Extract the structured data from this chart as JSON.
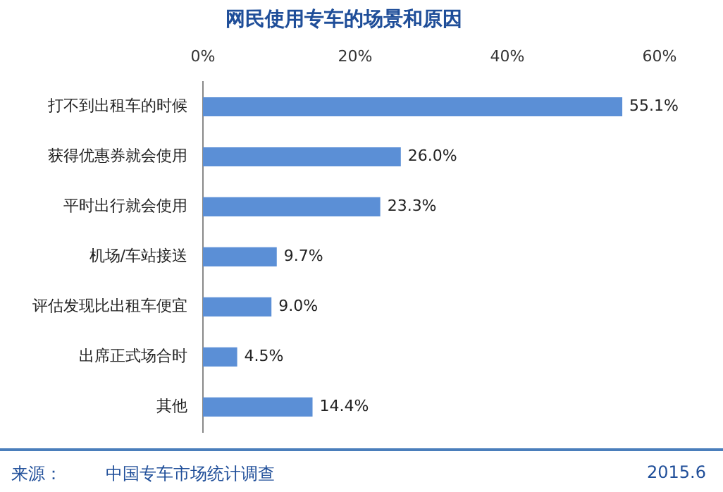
{
  "chart_data": {
    "type": "bar",
    "orientation": "horizontal",
    "title": "网民使用专车的场景和原因",
    "categories": [
      "打不到出租车的时候",
      "获得优惠券就会使用",
      "平时出行就会使用",
      "机场/车站接送",
      "评估发现比出租车便宜",
      "出席正式场合时",
      "其他"
    ],
    "values": [
      55.1,
      26.0,
      23.3,
      9.7,
      9.0,
      4.5,
      14.4
    ],
    "value_labels": [
      "55.1%",
      "26.0%",
      "23.3%",
      "9.7%",
      "9.0%",
      "4.5%",
      "14.4%"
    ],
    "color": "#5b8fd6",
    "xlim": [
      0,
      60
    ],
    "xticks": [
      {
        "value": 0,
        "label": "0%"
      },
      {
        "value": 20,
        "label": "20%"
      },
      {
        "value": 40,
        "label": "40%"
      },
      {
        "value": 60,
        "label": "60%"
      }
    ],
    "grid": false,
    "legend": false,
    "annotations": [
      "来源：",
      "中国专车市场统计调查",
      "2015.6"
    ]
  }
}
